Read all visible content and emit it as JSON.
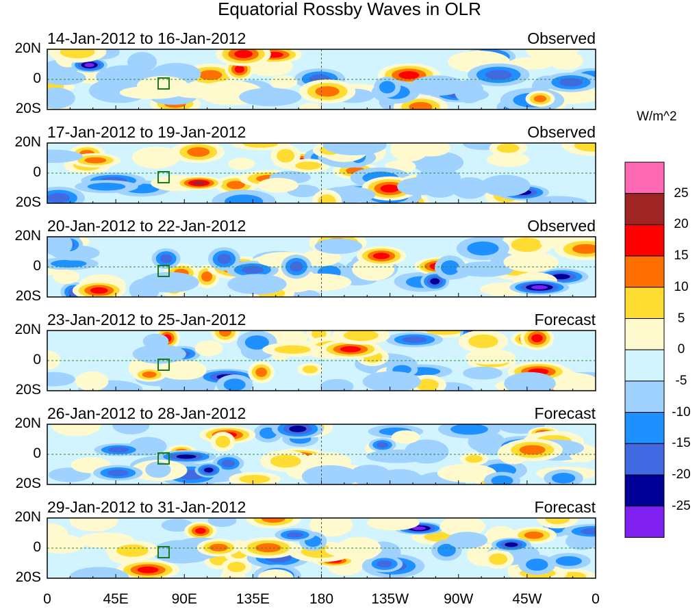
{
  "title": "Equatorial Rossby Waves in OLR",
  "chart_data": {
    "type": "heatmap",
    "title": "Equatorial Rossby Waves in OLR",
    "panels": [
      {
        "dates": "14-Jan-2012 to 16-Jan-2012",
        "status": "Observed"
      },
      {
        "dates": "17-Jan-2012 to 19-Jan-2012",
        "status": "Observed"
      },
      {
        "dates": "20-Jan-2012 to 22-Jan-2012",
        "status": "Observed"
      },
      {
        "dates": "23-Jan-2012 to 25-Jan-2012",
        "status": "Forecast"
      },
      {
        "dates": "26-Jan-2012 to 28-Jan-2012",
        "status": "Forecast"
      },
      {
        "dates": "29-Jan-2012 to 31-Jan-2012",
        "status": "Forecast"
      }
    ],
    "y_ticks": [
      "20N",
      "0",
      "20S"
    ],
    "x_ticks": [
      "0",
      "45E",
      "90E",
      "135E",
      "180",
      "135W",
      "90W",
      "45W",
      "0"
    ],
    "colorbar": {
      "units": "W/m^2",
      "labels": [
        "25",
        "20",
        "15",
        "10",
        "5",
        "0",
        "-5",
        "-10",
        "-15",
        "-20",
        "-25"
      ],
      "colors": [
        "#ff69b4",
        "#a02424",
        "#ff0000",
        "#ff7000",
        "#ffdc32",
        "#fffacd",
        "#d2f4ff",
        "#a0d2ff",
        "#1e90ff",
        "#4169e1",
        "#000096",
        "#8020f0"
      ]
    }
  }
}
